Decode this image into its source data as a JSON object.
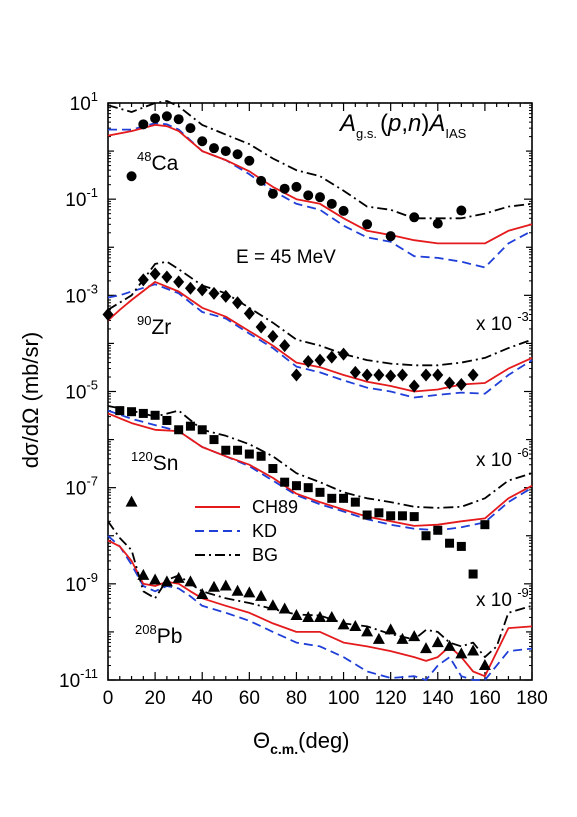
{
  "chart_data": {
    "type": "scatter",
    "title_parts": {
      "A1": "A",
      "gs": "g.s.",
      "mid": "(p,n)",
      "A2": "A",
      "ias": "IAS"
    },
    "energy_label": "E = 45 MeV",
    "xlabel_parts": {
      "theta": "Θ",
      "sub": "c.m.",
      "unit": "(deg)"
    },
    "ylabel": "dσ/dΩ (mb/sr)",
    "xlim": [
      0,
      180
    ],
    "x_ticks": [
      0,
      20,
      40,
      60,
      80,
      100,
      120,
      140,
      160,
      180
    ],
    "y_log_range": [
      -11,
      1
    ],
    "y_major_exponents": [
      1,
      -1,
      -3,
      -5,
      -7,
      -9,
      -11
    ],
    "y_tick_labels": [
      {
        "exp": 1,
        "base": "10",
        "sup": "1"
      },
      {
        "exp": -1,
        "base": "10",
        "sup": "-1"
      },
      {
        "exp": -3,
        "base": "10",
        "sup": "-3"
      },
      {
        "exp": -5,
        "base": "10",
        "sup": "-5"
      },
      {
        "exp": -7,
        "base": "10",
        "sup": "-7"
      },
      {
        "exp": -9,
        "base": "10",
        "sup": "-9"
      },
      {
        "exp": -11,
        "base": "10",
        "sup": "-11"
      }
    ],
    "legend": [
      {
        "name": "CH89",
        "color": "#e41a1c",
        "dash": "solid"
      },
      {
        "name": "KD",
        "color": "#1f3fd8",
        "dash": "dash"
      },
      {
        "name": "BG",
        "color": "#000000",
        "dash": "dashdot"
      }
    ],
    "nuclei": [
      {
        "mass": "48",
        "symbol": "Ca",
        "scale_text": "",
        "marker": "circle",
        "x": [
          10,
          15,
          20,
          25,
          30,
          35,
          40,
          45,
          50,
          55,
          60,
          65,
          70,
          75,
          80,
          85,
          90,
          95,
          100,
          110,
          120,
          130,
          140,
          150
        ],
        "y": [
          0.3,
          3.6,
          4.8,
          5.3,
          4.6,
          3.0,
          1.6,
          1.15,
          1.0,
          0.86,
          0.63,
          0.24,
          0.13,
          0.165,
          0.18,
          0.12,
          0.11,
          0.08,
          0.057,
          0.03,
          0.017,
          0.042,
          0.031,
          0.058
        ],
        "curves": {
          "CH89": {
            "x": [
              0,
              10,
              20,
              25,
              30,
              40,
              50,
              60,
              70,
              80,
              90,
              100,
              110,
              120,
              130,
              140,
              150,
              160,
              170,
              180
            ],
            "y": [
              2.1,
              2.6,
              3.5,
              3.3,
              2.6,
              1.0,
              0.65,
              0.38,
              0.18,
              0.1,
              0.08,
              0.04,
              0.022,
              0.018,
              0.014,
              0.012,
              0.012,
              0.012,
              0.022,
              0.03
            ]
          },
          "KD": {
            "x": [
              0,
              10,
              20,
              25,
              30,
              40,
              50,
              60,
              70,
              80,
              90,
              100,
              110,
              120,
              130,
              140,
              150,
              160,
              170,
              180
            ],
            "y": [
              2.8,
              2.8,
              3.8,
              3.6,
              2.8,
              1.0,
              0.65,
              0.33,
              0.15,
              0.08,
              0.06,
              0.028,
              0.016,
              0.013,
              0.0065,
              0.006,
              0.005,
              0.0038,
              0.012,
              0.022
            ]
          },
          "BG": {
            "x": [
              0,
              10,
              20,
              25,
              30,
              40,
              50,
              60,
              70,
              80,
              90,
              100,
              110,
              120,
              130,
              140,
              150,
              160,
              170,
              180
            ],
            "y": [
              9,
              6.5,
              10,
              11,
              8.5,
              3.5,
              2.2,
              1.4,
              0.7,
              0.4,
              0.3,
              0.15,
              0.07,
              0.06,
              0.04,
              0.04,
              0.04,
              0.05,
              0.07,
              0.08
            ]
          }
        }
      },
      {
        "mass": "90",
        "symbol": "Zr",
        "scale_text": "x 10",
        "scale_exp": "-3",
        "marker": "diamond",
        "x": [
          0,
          15,
          20,
          25,
          30,
          35,
          40,
          45,
          50,
          55,
          60,
          65,
          70,
          75,
          80,
          85,
          90,
          95,
          100,
          105,
          110,
          115,
          120,
          125,
          130,
          135,
          140,
          145,
          150,
          155
        ],
        "y": [
          0.0004,
          0.0021,
          0.0028,
          0.0024,
          0.0019,
          0.0014,
          0.0013,
          0.0011,
          0.00095,
          0.0007,
          0.00042,
          0.00022,
          0.00014,
          9e-05,
          2.2e-05,
          4.2e-05,
          4.5e-05,
          5.2e-05,
          6e-05,
          2.5e-05,
          2.2e-05,
          2.2e-05,
          2.1e-05,
          2.2e-05,
          1.3e-05,
          2.2e-05,
          2.2e-05,
          1.5e-05,
          1.4e-05,
          2.2e-05
        ],
        "curves": {
          "CH89": {
            "x": [
              0,
              5,
              10,
              20,
              30,
              40,
              50,
              60,
              70,
              80,
              90,
              100,
              110,
              120,
              130,
              140,
              150,
              160,
              170,
              180
            ],
            "y": [
              0.0003,
              0.0005,
              0.0008,
              0.0019,
              0.0012,
              0.00055,
              0.00036,
              0.00018,
              9e-05,
              4e-05,
              3.2e-05,
              2.2e-05,
              1.6e-05,
              1.3e-05,
              1e-05,
              1.1e-05,
              1.4e-05,
              1.5e-05,
              3e-05,
              5e-05
            ]
          },
          "KD": {
            "x": [
              0,
              5,
              10,
              20,
              30,
              40,
              50,
              60,
              70,
              80,
              90,
              100,
              110,
              120,
              130,
              140,
              150,
              160,
              170,
              180
            ],
            "y": [
              0.0009,
              0.001,
              0.0012,
              0.0017,
              0.0011,
              0.00045,
              0.00033,
              0.00016,
              8e-05,
              3.3e-05,
              2.5e-05,
              1.7e-05,
              1.2e-05,
              1e-05,
              7.5e-06,
              8.5e-06,
              9.5e-06,
              9e-06,
              2.2e-05,
              4.5e-05
            ]
          },
          "BG": {
            "x": [
              0,
              10,
              20,
              25,
              30,
              40,
              50,
              60,
              70,
              80,
              90,
              100,
              110,
              120,
              130,
              140,
              150,
              160,
              170,
              180
            ],
            "y": [
              0.0005,
              0.001,
              0.0045,
              0.005,
              0.0035,
              0.0016,
              0.0011,
              0.00055,
              0.00027,
              0.00012,
              9e-05,
              6e-05,
              4.5e-05,
              3.8e-05,
              3.5e-05,
              3.5e-05,
              4e-05,
              5e-05,
              8e-05,
              0.00012
            ]
          }
        }
      },
      {
        "mass": "120",
        "symbol": "Sn",
        "scale_text": "x 10",
        "scale_exp": "-6",
        "marker": "square",
        "x": [
          5,
          10,
          15,
          20,
          25,
          30,
          35,
          40,
          45,
          50,
          55,
          60,
          65,
          70,
          75,
          80,
          85,
          90,
          95,
          100,
          105,
          110,
          115,
          120,
          125,
          130,
          135,
          140,
          145,
          150,
          155,
          160
        ],
        "y": [
          4e-06,
          3.8e-06,
          3.5e-06,
          3.2e-06,
          2.5e-06,
          1.6e-06,
          1.9e-06,
          1.6e-06,
          1e-06,
          6e-07,
          6e-07,
          5e-07,
          4.5e-07,
          2.5e-07,
          1.3e-07,
          1.1e-07,
          1e-07,
          8e-08,
          6e-08,
          6e-08,
          5e-08,
          2.7e-08,
          3e-08,
          2.6e-08,
          2.6e-08,
          2.5e-08,
          1e-08,
          1.3e-08,
          7e-09,
          6e-09,
          1.6e-09,
          1.7e-08
        ],
        "curves": {
          "CH89": {
            "x": [
              0,
              10,
              20,
              30,
              40,
              50,
              60,
              70,
              80,
              90,
              100,
              110,
              120,
              130,
              140,
              150,
              160,
              170,
              180
            ],
            "y": [
              3.5e-06,
              2.2e-06,
              1.6e-06,
              1.5e-06,
              7e-07,
              4.5e-07,
              3e-07,
              1.6e-07,
              7.5e-08,
              5e-08,
              3.5e-08,
              2.5e-08,
              2e-08,
              1.6e-08,
              1.7e-08,
              2e-08,
              2.3e-08,
              6e-08,
              1.1e-07
            ]
          },
          "KD": {
            "x": [
              0,
              10,
              20,
              30,
              40,
              50,
              60,
              70,
              80,
              90,
              100,
              110,
              120,
              130,
              140,
              150,
              160,
              170,
              180
            ],
            "y": [
              4e-06,
              2.7e-06,
              2e-06,
              1.5e-06,
              7e-07,
              4.5e-07,
              2.8e-07,
              1.4e-07,
              7e-08,
              4.5e-08,
              3.2e-08,
              2.2e-08,
              1.7e-08,
              1.4e-08,
              1.3e-08,
              1.5e-08,
              1.9e-08,
              5e-08,
              1e-07
            ]
          },
          "BG": {
            "x": [
              0,
              10,
              20,
              30,
              40,
              50,
              60,
              70,
              80,
              90,
              100,
              110,
              120,
              130,
              140,
              150,
              160,
              170,
              180
            ],
            "y": [
              5e-06,
              4e-06,
              3e-06,
              4e-06,
              1.6e-06,
              1.2e-06,
              8e-07,
              4.5e-07,
              2e-07,
              1.3e-07,
              8e-08,
              6e-08,
              5e-08,
              4e-08,
              3.8e-08,
              4e-08,
              6e-08,
              1.4e-07,
              2e-07
            ]
          }
        }
      },
      {
        "mass": "208",
        "symbol": "Pb",
        "scale_text": "x 10",
        "scale_exp": "-9",
        "marker": "triangle",
        "x": [
          10,
          15,
          20,
          25,
          30,
          35,
          40,
          45,
          50,
          55,
          60,
          65,
          70,
          75,
          80,
          85,
          90,
          95,
          100,
          105,
          110,
          115,
          120,
          125,
          130,
          135,
          140,
          145,
          150,
          155,
          160
        ],
        "y": [
          5e-08,
          1.5e-09,
          1.2e-09,
          1.1e-09,
          1.3e-09,
          1.1e-09,
          6e-10,
          8.5e-10,
          9e-10,
          7e-10,
          6.5e-10,
          5.5e-10,
          3.5e-10,
          3e-10,
          2.2e-10,
          2e-10,
          2e-10,
          2e-10,
          1.4e-10,
          1.3e-10,
          1e-10,
          7e-11,
          1.1e-10,
          7e-11,
          8e-11,
          4.5e-11,
          6e-11,
          5e-11,
          3.5e-11,
          4e-11,
          2e-11
        ],
        "curves": {
          "CH89": {
            "x": [
              0,
              5,
              10,
              15,
              20,
              25,
              30,
              35,
              40,
              50,
              60,
              70,
              80,
              90,
              100,
              110,
              120,
              130,
              135,
              140,
              145,
              150,
              155,
              160,
              170,
              180
            ],
            "y": [
              8e-09,
              6e-09,
              3e-09,
              1e-09,
              9e-10,
              1.1e-09,
              1e-09,
              7e-10,
              5e-10,
              3.5e-10,
              2.5e-10,
              1.5e-10,
              1e-10,
              1e-10,
              6e-11,
              5e-11,
              4e-11,
              3e-11,
              2.5e-11,
              3e-11,
              5e-11,
              3e-11,
              1.5e-11,
              1.2e-11,
              1.2e-10,
              1.3e-10
            ]
          },
          "KD": {
            "x": [
              0,
              5,
              10,
              15,
              20,
              25,
              30,
              35,
              40,
              50,
              60,
              70,
              80,
              90,
              100,
              110,
              120,
              130,
              135,
              140,
              145,
              150,
              155,
              160,
              170,
              180
            ],
            "y": [
              1e-08,
              6e-09,
              2.5e-09,
              9e-10,
              7e-10,
              9e-10,
              8e-10,
              5.5e-10,
              3.5e-10,
              2.5e-10,
              1.7e-10,
              1e-10,
              6e-11,
              5e-11,
              3e-11,
              1.5e-11,
              1.1e-11,
              1.2e-11,
              1e-11,
              2e-11,
              3e-11,
              1.2e-11,
              8e-12,
              1e-11,
              4e-11,
              4.5e-11
            ]
          },
          "BG": {
            "x": [
              0,
              5,
              10,
              15,
              20,
              25,
              30,
              35,
              40,
              50,
              60,
              70,
              80,
              90,
              100,
              110,
              120,
              130,
              135,
              140,
              145,
              150,
              155,
              160,
              165,
              170,
              180
            ],
            "y": [
              2e-08,
              9e-09,
              5e-09,
              7e-10,
              5e-10,
              1.2e-09,
              1.5e-09,
              1e-09,
              7e-10,
              5e-10,
              4e-10,
              3e-10,
              2.3e-10,
              2.2e-10,
              1.5e-10,
              1.3e-10,
              9e-11,
              7e-11,
              1.1e-10,
              1e-10,
              6e-11,
              5e-11,
              6e-11,
              3e-11,
              5e-11,
              2.5e-10,
              3.5e-10
            ]
          }
        }
      }
    ]
  }
}
